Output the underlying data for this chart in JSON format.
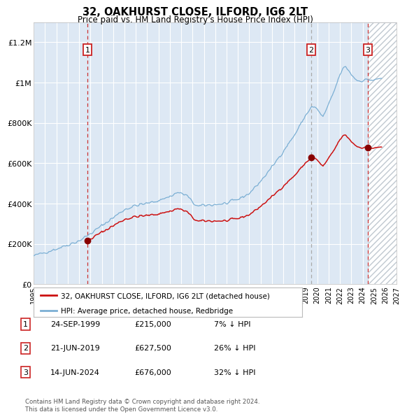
{
  "title": "32, OAKHURST CLOSE, ILFORD, IG6 2LT",
  "subtitle": "Price paid vs. HM Land Registry's House Price Index (HPI)",
  "ylim": [
    0,
    1300000
  ],
  "xlim_start": 1995.0,
  "xlim_end": 2027.0,
  "yticks": [
    0,
    200000,
    400000,
    600000,
    800000,
    1000000,
    1200000
  ],
  "ytick_labels": [
    "£0",
    "£200K",
    "£400K",
    "£600K",
    "£800K",
    "£1M",
    "£1.2M"
  ],
  "xticks": [
    1995,
    1996,
    1997,
    1998,
    1999,
    2000,
    2001,
    2002,
    2003,
    2004,
    2005,
    2006,
    2007,
    2008,
    2009,
    2010,
    2011,
    2012,
    2013,
    2014,
    2015,
    2016,
    2017,
    2018,
    2019,
    2020,
    2021,
    2022,
    2023,
    2024,
    2025,
    2026,
    2027
  ],
  "bg_color": "#dde8f4",
  "grid_color": "#ffffff",
  "sale1_date": 1999.73,
  "sale1_price": 215000,
  "sale1_label": "1",
  "sale2_date": 2019.47,
  "sale2_price": 627500,
  "sale2_label": "2",
  "sale3_date": 2024.45,
  "sale3_price": 676000,
  "sale3_label": "3",
  "red_line_color": "#cc1111",
  "blue_line_color": "#7bafd4",
  "dot_color": "#880000",
  "vline1_color": "#cc3333",
  "vline2_color": "#aaaaaa",
  "vline3_color": "#cc3333",
  "legend_red_label": "32, OAKHURST CLOSE, ILFORD, IG6 2LT (detached house)",
  "legend_blue_label": "HPI: Average price, detached house, Redbridge",
  "table_rows": [
    {
      "num": "1",
      "date": "24-SEP-1999",
      "price": "£215,000",
      "note": "7% ↓ HPI"
    },
    {
      "num": "2",
      "date": "21-JUN-2019",
      "price": "£627,500",
      "note": "26% ↓ HPI"
    },
    {
      "num": "3",
      "date": "14-JUN-2024",
      "price": "£676,000",
      "note": "32% ↓ HPI"
    }
  ],
  "footer": "Contains HM Land Registry data © Crown copyright and database right 2024.\nThis data is licensed under the Open Government Licence v3.0."
}
